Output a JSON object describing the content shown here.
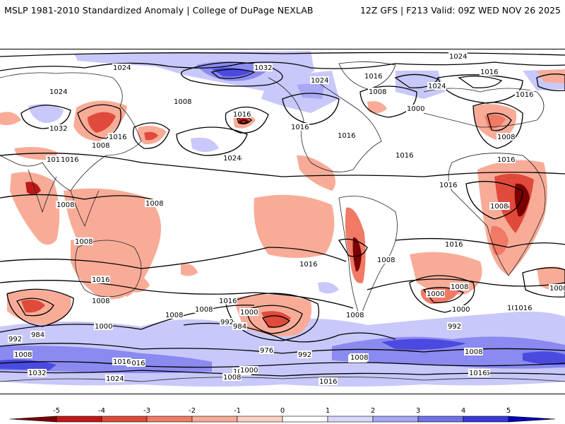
{
  "header": {
    "title_left": "MSLP 1981-2010 Standardized Anomaly | College of DuPage NEXLAB",
    "title_right": "12Z GFS | F213 Valid: 09Z WED NOV 26 2025"
  },
  "colorbar": {
    "ticks": [
      "-5",
      "-4",
      "-3",
      "-2",
      "-1",
      "0",
      "1",
      "2",
      "3",
      "4",
      "5"
    ],
    "colors": [
      "#7a0000",
      "#c01818",
      "#e04a3a",
      "#f07a66",
      "#f8ac98",
      "#fdd2c4",
      "#ffffff",
      "#d8d8ff",
      "#a8a8f4",
      "#7070e8",
      "#3838d8",
      "#0000b8"
    ]
  },
  "isobars": [
    {
      "label": "1024",
      "group": "n-hemi"
    },
    {
      "label": "1024",
      "group": "n-hemi"
    },
    {
      "label": "1032",
      "group": "n-hemi"
    },
    {
      "label": "1024",
      "group": "n-hemi"
    },
    {
      "label": "1016",
      "group": "n-hemi"
    },
    {
      "label": "1016",
      "group": "n-hemi"
    },
    {
      "label": "1024",
      "group": "n-hemi"
    },
    {
      "label": "1008",
      "group": "n-hemi"
    },
    {
      "label": "1016",
      "group": "n-hemi"
    },
    {
      "label": "1024",
      "group": "n-hemi"
    },
    {
      "label": "1008",
      "group": "n-hemi"
    },
    {
      "label": "1000",
      "group": "n-hemi"
    },
    {
      "label": "1016",
      "group": "n-hemi"
    },
    {
      "label": "1016",
      "group": "n-hemi"
    },
    {
      "label": "1032",
      "group": "n-hemi"
    },
    {
      "label": "1016",
      "group": "n-hemi"
    },
    {
      "label": "1008",
      "group": "n-hemi"
    },
    {
      "label": "1016",
      "group": "n-hemi"
    },
    {
      "label": "1024",
      "group": "n-hemi"
    },
    {
      "label": "1024",
      "group": "n-hemi"
    },
    {
      "label": "1016",
      "group": "n-hemi"
    },
    {
      "label": "1016",
      "group": "n-hemi"
    },
    {
      "label": "1008",
      "group": "n-hemi"
    },
    {
      "label": "1016",
      "group": "n-hemi"
    },
    {
      "label": "1016",
      "group": "n-hemi"
    },
    {
      "label": "1016",
      "group": "n-hemi"
    },
    {
      "label": "1016",
      "group": "n-hemi"
    },
    {
      "label": "1008",
      "group": "tropics"
    },
    {
      "label": "1008",
      "group": "tropics"
    },
    {
      "label": "1008",
      "group": "tropics"
    },
    {
      "label": "1008",
      "group": "tropics"
    },
    {
      "label": "1008",
      "group": "tropics"
    },
    {
      "label": "1016",
      "group": "tropics"
    },
    {
      "label": "1016",
      "group": "tropics"
    },
    {
      "label": "1016",
      "group": "tropics"
    },
    {
      "label": "1016",
      "group": "tropics"
    },
    {
      "label": "1008",
      "group": "tropics"
    },
    {
      "label": "1008",
      "group": "s-hemi"
    },
    {
      "label": "1000",
      "group": "s-hemi"
    },
    {
      "label": "1008",
      "group": "s-hemi"
    },
    {
      "label": "1000",
      "group": "s-hemi"
    },
    {
      "label": "992",
      "group": "s-hemi"
    },
    {
      "label": "984",
      "group": "s-hemi"
    },
    {
      "label": "1008",
      "group": "s-hemi"
    },
    {
      "label": "1016",
      "group": "s-hemi"
    },
    {
      "label": "1008",
      "group": "s-hemi"
    },
    {
      "label": "992",
      "group": "s-hemi"
    },
    {
      "label": "1000",
      "group": "s-hemi"
    },
    {
      "label": "984",
      "group": "s-hemi"
    },
    {
      "label": "976",
      "group": "s-hemi"
    },
    {
      "label": "992",
      "group": "s-hemi"
    },
    {
      "label": "1008",
      "group": "s-hemi"
    },
    {
      "label": "1000",
      "group": "s-hemi"
    },
    {
      "label": "992",
      "group": "s-hemi"
    },
    {
      "label": "1008",
      "group": "s-hemi"
    },
    {
      "label": "1008",
      "group": "s-hemi"
    },
    {
      "label": "1016",
      "group": "s-hemi"
    },
    {
      "label": "1008",
      "group": "s-hemi"
    },
    {
      "label": "1016",
      "group": "s-hemi"
    },
    {
      "label": "1000",
      "group": "s-hemi"
    },
    {
      "label": "1008",
      "group": "s-hemi"
    },
    {
      "label": "1016",
      "group": "s-hemi"
    },
    {
      "label": "1032",
      "group": "s-hemi"
    },
    {
      "label": "1024",
      "group": "s-hemi"
    },
    {
      "label": "1016",
      "group": "s-hemi"
    },
    {
      "label": "1008",
      "group": "s-hemi"
    },
    {
      "label": "1000",
      "group": "s-hemi"
    },
    {
      "label": "1016",
      "group": "s-hemi"
    },
    {
      "label": "1008",
      "group": "s-hemi"
    },
    {
      "label": "1016",
      "group": "s-hemi"
    }
  ]
}
